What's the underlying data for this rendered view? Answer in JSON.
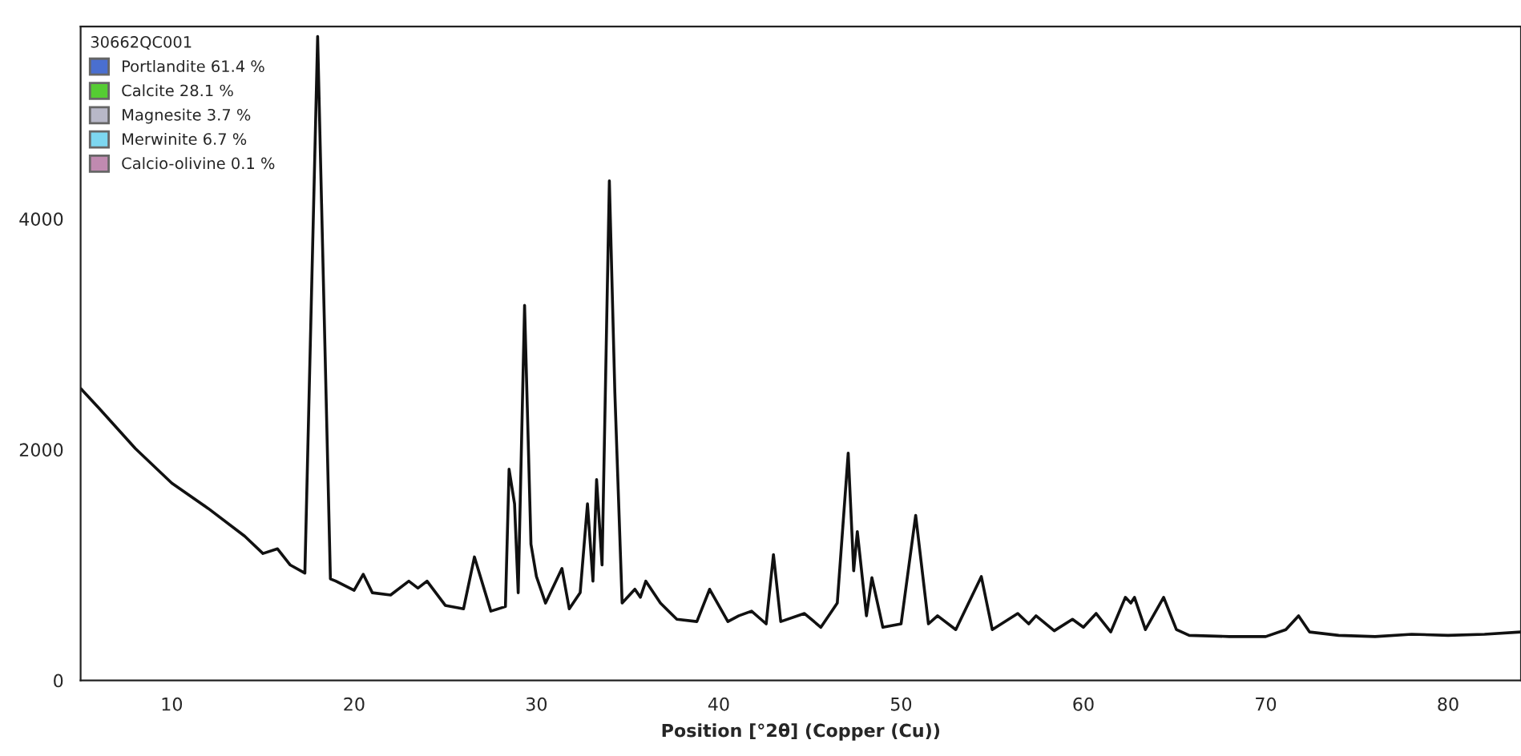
{
  "chart_data": {
    "type": "line",
    "xlabel": "Position [°2θ] (Copper (Cu))",
    "legend_title": "30662QC001",
    "legend": "top left",
    "grid": false,
    "marker": "none",
    "line_style": "solid",
    "xlim": [
      5,
      84
    ],
    "ylim": [
      0,
      5667
    ],
    "xticks": [
      10,
      20,
      30,
      40,
      50,
      60,
      70,
      80
    ],
    "yticks": [
      0,
      2000,
      4000
    ],
    "series": [
      {
        "color": "#111111",
        "x": [
          5,
          6,
          8,
          10,
          12,
          14,
          15,
          15.8,
          16.5,
          17.3,
          18.0,
          18.7,
          19,
          20,
          20.5,
          21,
          22,
          23,
          23.5,
          24,
          25,
          26,
          26.6,
          27.5,
          28.3,
          28.5,
          28.8,
          29.0,
          29.35,
          29.7,
          30.0,
          30.5,
          31.4,
          31.8,
          32.4,
          32.8,
          33.1,
          33.3,
          33.6,
          34.0,
          34.3,
          34.7,
          35.4,
          35.7,
          36.0,
          36.8,
          37.7,
          38.8,
          39.5,
          40.5,
          41.1,
          41.8,
          42.6,
          43.0,
          43.4,
          44.7,
          45.6,
          46.5,
          47.1,
          47.4,
          47.6,
          48.1,
          48.4,
          49.0,
          50.0,
          50.8,
          51.5,
          52.0,
          53.0,
          54.4,
          55.0,
          56.4,
          57.0,
          57.4,
          58.4,
          59.4,
          60.0,
          60.7,
          61.5,
          62.3,
          62.6,
          62.8,
          63.4,
          64.4,
          65.1,
          65.8,
          68,
          70,
          71.1,
          71.8,
          72.4,
          74,
          76,
          78,
          80,
          82,
          84
        ],
        "values": [
          2530,
          2360,
          2010,
          1710,
          1490,
          1250,
          1100,
          1140,
          1000,
          930,
          5580,
          880,
          860,
          780,
          920,
          760,
          740,
          860,
          800,
          860,
          650,
          620,
          1070,
          600,
          640,
          1830,
          1530,
          760,
          3250,
          1180,
          900,
          670,
          970,
          620,
          760,
          1530,
          860,
          1740,
          1000,
          4330,
          2500,
          670,
          790,
          720,
          860,
          670,
          530,
          510,
          790,
          510,
          560,
          600,
          490,
          1090,
          510,
          580,
          460,
          670,
          1970,
          950,
          1290,
          560,
          890,
          460,
          490,
          1430,
          490,
          560,
          440,
          900,
          440,
          580,
          490,
          560,
          430,
          530,
          460,
          580,
          420,
          720,
          670,
          720,
          440,
          720,
          440,
          390,
          380,
          380,
          440,
          560,
          420,
          390,
          380,
          400,
          390,
          400,
          420
        ]
      },
      {
        "name": "Portlandite 61.4 %",
        "color": "#4a6fd0"
      },
      {
        "name": "Calcite 28.1 %",
        "color": "#55cc33"
      },
      {
        "name": "Magnesite 3.7 %",
        "color": "#b8b8c8"
      },
      {
        "name": "Merwinite 6.7 %",
        "color": "#7dd7f0"
      },
      {
        "name": "Calcio-olivine 0.1 %",
        "color": "#c08ab0"
      }
    ]
  }
}
